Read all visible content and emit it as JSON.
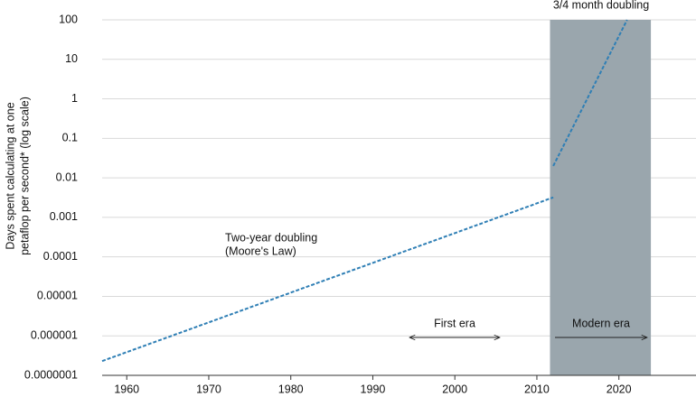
{
  "chart_data": {
    "type": "line",
    "y_label": [
      "Days spent calculating at one",
      "petaflop per second* (log scale)"
    ],
    "log_y": true,
    "grid": true,
    "xlim": [
      1957,
      2029.4
    ],
    "xticks": [
      1960,
      1970,
      1980,
      1990,
      2000,
      2010,
      2020
    ],
    "ylim": [
      1e-07,
      100
    ],
    "yticks": [
      {
        "value": 1e-07,
        "label": "0.0000001"
      },
      {
        "value": 1e-06,
        "label": "0.000001"
      },
      {
        "value": 1e-05,
        "label": "0.00001"
      },
      {
        "value": 0.0001,
        "label": "0.0001"
      },
      {
        "value": 0.001,
        "label": "0.001"
      },
      {
        "value": 0.01,
        "label": "0.01"
      },
      {
        "value": 0.1,
        "label": "0.1"
      },
      1,
      10,
      100
    ],
    "series": [
      {
        "color": "#2f7fb5",
        "x": [
          1957,
          2012
        ],
        "values": [
          2.3e-07,
          0.0032
        ]
      },
      {
        "color": "#2f7fb5",
        "x": [
          2012,
          2021
        ],
        "values": [
          0.02,
          100
        ]
      }
    ],
    "shade": {
      "x": [
        2011.6,
        2023.9
      ],
      "color": "#9aa6ad"
    },
    "annotations": {
      "moore": [
        "Two-year doubling",
        "(Moore's Law)"
      ],
      "modern_doubling": "3/4 month doubling",
      "first_era": "First era",
      "modern_era": "Modern era"
    }
  }
}
